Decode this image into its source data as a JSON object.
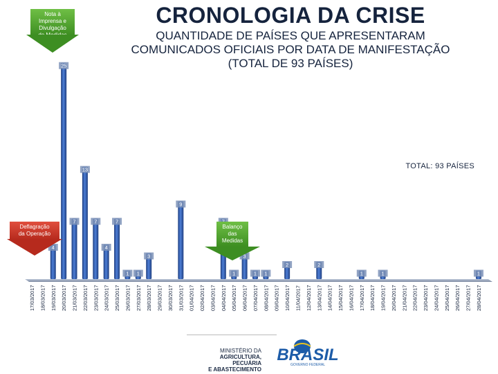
{
  "title": "CRONOLOGIA DA CRISE",
  "subtitle_line1": "QUANTIDADE DE PAÍSES QUE APRESENTARAM",
  "subtitle_line2": "COMUNICADOS OFICIAIS POR DATA DE MANIFESTAÇÃO",
  "subtitle_line3": "(TOTAL DE 93 PAÍSES)",
  "total_label": "TOTAL: 93 PAÍSES",
  "callouts": {
    "press_note_l1": "Nota à",
    "press_note_l2": "Imprensa e",
    "press_note_l3": "Divulgação",
    "press_note_l4": "de Medidas",
    "operation_l1": "Deflagração",
    "operation_l2": "da Operação",
    "balance_l1": "Balanço",
    "balance_l2": "das",
    "balance_l3": "Medidas"
  },
  "footer": {
    "ministry_l1": "MINISTÉRIO DA",
    "ministry_l2": "AGRICULTURA, PECUÁRIA",
    "ministry_l3": "E ABASTECIMENTO",
    "brand": "BRASIL",
    "brand_tagline": "GOVERNO FEDERAL"
  },
  "colors": {
    "bar": "#3a66b8",
    "bar_dark": "#1f3f80",
    "title": "#15233d",
    "green": "#3d8e22",
    "red": "#b62a1d"
  },
  "chart_data": {
    "type": "bar",
    "title": "CRONOLOGIA DA CRISE",
    "xlabel": "",
    "ylabel": "",
    "ylim": [
      0,
      30
    ],
    "show_labels_for_zero": false,
    "categories": [
      "17/03/2017",
      "18/03/2017",
      "19/03/2017",
      "20/03/2017",
      "21/03/2017",
      "22/03/2017",
      "23/03/2017",
      "24/03/2017",
      "25/03/2017",
      "26/03/2017",
      "27/03/2017",
      "28/03/2017",
      "29/03/2017",
      "30/03/2017",
      "31/03/2017",
      "01/04/2017",
      "02/04/2017",
      "03/04/2017",
      "04/04/2017",
      "05/04/2017",
      "06/04/2017",
      "07/04/2017",
      "08/04/2017",
      "09/04/2017",
      "10/04/2017",
      "11/04/2017",
      "12/04/2017",
      "13/04/2017",
      "14/04/2017",
      "15/04/2017",
      "16/04/2017",
      "17/04/2017",
      "18/04/2017",
      "19/04/2017",
      "20/04/2017",
      "21/04/2017",
      "22/04/2017",
      "23/04/2017",
      "24/04/2017",
      "25/04/2017",
      "26/04/2017",
      "27/04/2017",
      "28/04/2017"
    ],
    "values": [
      0,
      0,
      4,
      25,
      7,
      13,
      7,
      4,
      7,
      1,
      1,
      3,
      0,
      0,
      9,
      0,
      0,
      0,
      7,
      1,
      3,
      1,
      1,
      0,
      2,
      0,
      0,
      2,
      0,
      0,
      0,
      1,
      0,
      1,
      0,
      0,
      0,
      0,
      0,
      0,
      0,
      0,
      1
    ]
  }
}
